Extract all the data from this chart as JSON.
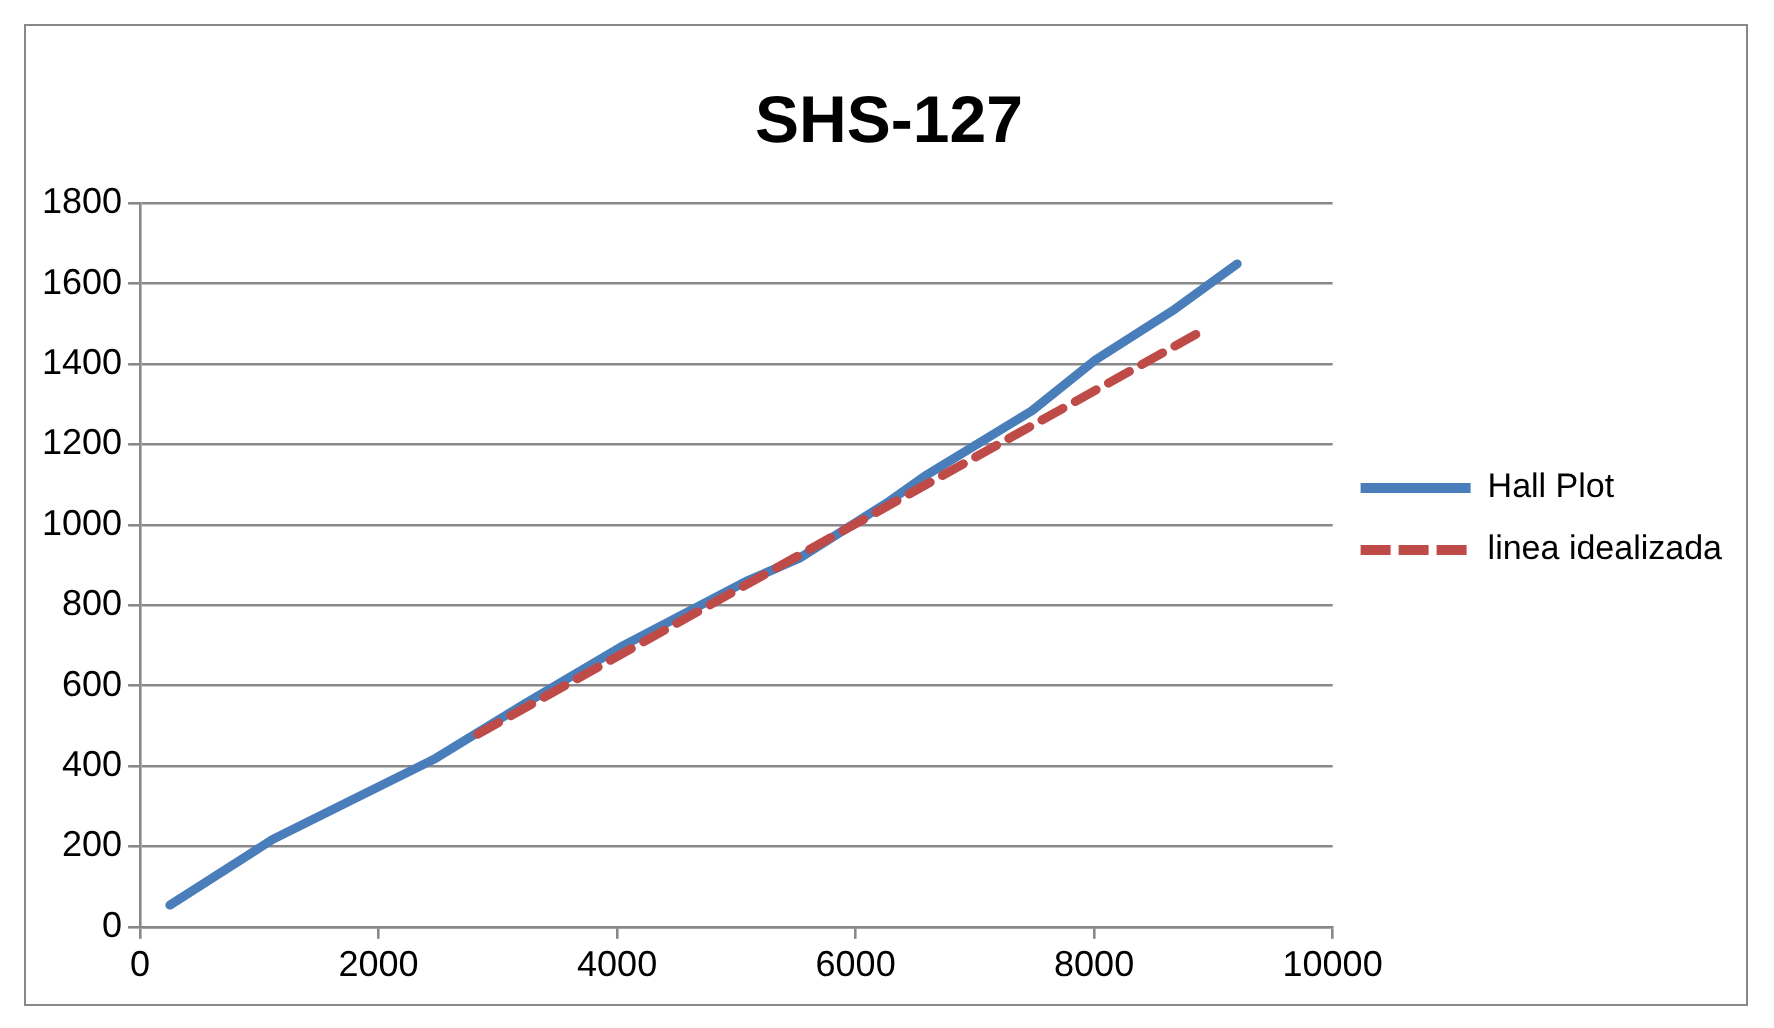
{
  "chart_data": {
    "type": "line",
    "title": "SHS-127",
    "series": [
      {
        "name": "Hall Plot",
        "color": "#4a7ebb",
        "line_style": "solid",
        "x": [
          250,
          1110,
          1780,
          2460,
          3210,
          4030,
          5080,
          5530,
          6280,
          6580,
          7480,
          8010,
          8680,
          9200
        ],
        "values": [
          54,
          217,
          316,
          416,
          552,
          696,
          859,
          917,
          1058,
          1121,
          1284,
          1410,
          1537,
          1649
        ]
      },
      {
        "name": "linea idealizada",
        "color": "#be4b48",
        "line_style": "dashed",
        "x": [
          2830,
          8910
        ],
        "values": [
          479,
          1483
        ]
      }
    ],
    "xlim": [
      0,
      10000
    ],
    "xticks": [
      0,
      2000,
      4000,
      6000,
      8000,
      10000
    ],
    "ylim": [
      0,
      1800
    ],
    "yticks": [
      0,
      200,
      400,
      600,
      800,
      1000,
      1200,
      1400,
      1600,
      1800
    ],
    "grid": "y",
    "legend": "right",
    "marker": "none"
  }
}
